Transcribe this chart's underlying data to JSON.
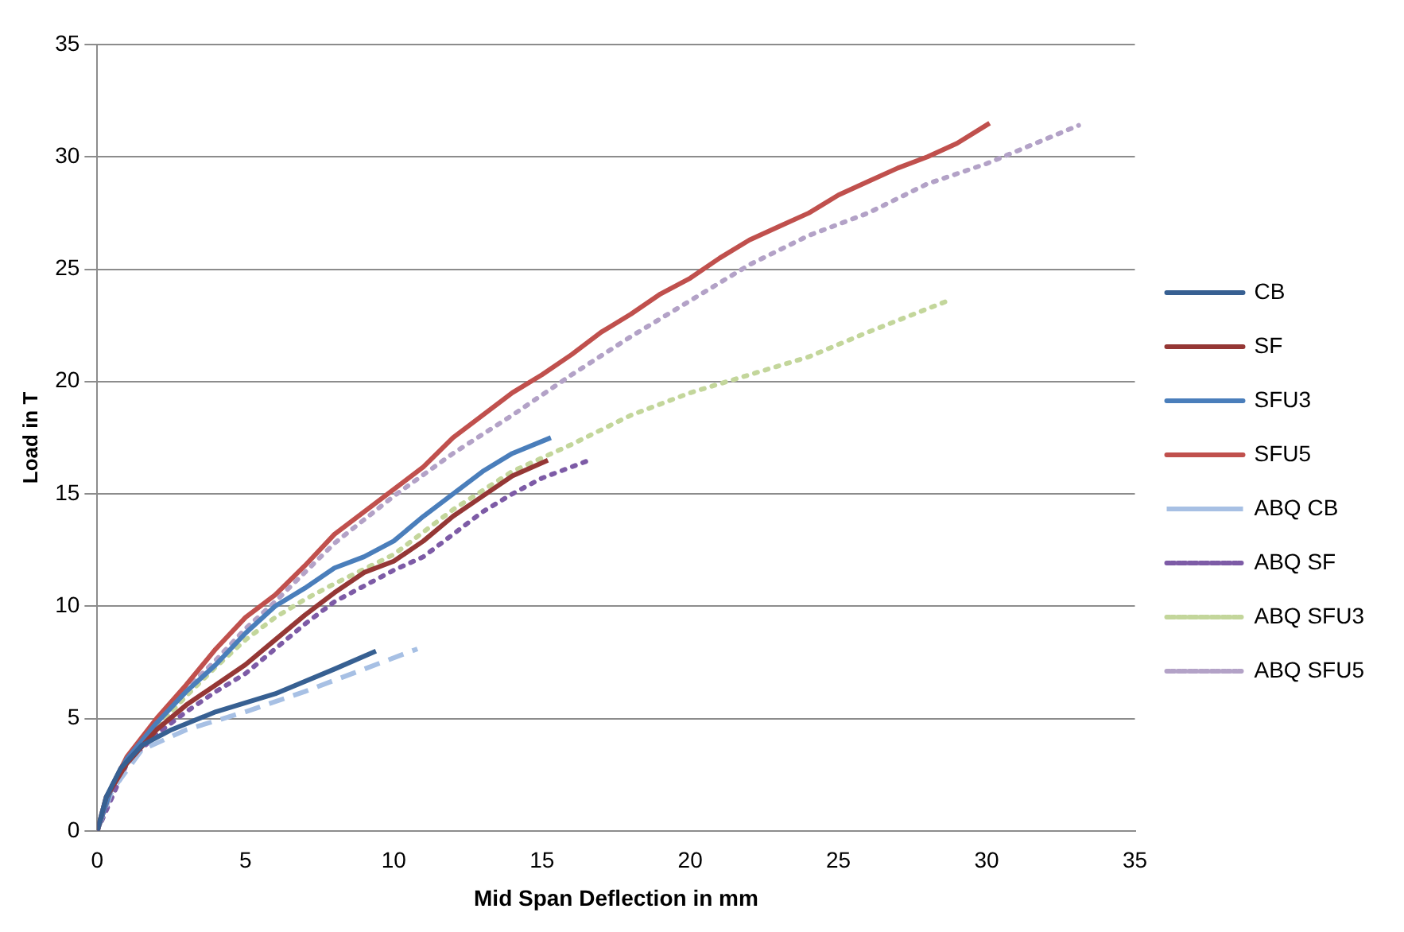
{
  "chart_data": {
    "type": "line",
    "xlabel": "Mid Span Deflection in mm",
    "ylabel": "Load in T",
    "xlim": [
      0,
      35
    ],
    "ylim": [
      0,
      35
    ],
    "xticks": [
      0,
      5,
      10,
      15,
      20,
      25,
      30,
      35
    ],
    "yticks": [
      0,
      5,
      10,
      15,
      20,
      25,
      30,
      35
    ],
    "grid": "y",
    "legend": "right",
    "marker": "none",
    "series": [
      {
        "name": "CB",
        "color": "#376092",
        "line_style": "solid",
        "x": [
          0,
          0.3,
          0.8,
          1.5,
          2.5,
          4,
          6,
          8,
          9.4
        ],
        "values": [
          0,
          1.5,
          2.8,
          3.8,
          4.5,
          5.3,
          6.1,
          7.2,
          8.0
        ]
      },
      {
        "name": "SF",
        "color": "#953735",
        "line_style": "solid",
        "x": [
          0,
          0.3,
          1,
          2,
          3,
          4,
          5,
          6,
          7,
          8,
          9,
          10,
          11,
          12,
          13,
          14,
          15.2
        ],
        "values": [
          0,
          1.5,
          3,
          4.5,
          5.6,
          6.5,
          7.4,
          8.5,
          9.6,
          10.6,
          11.5,
          12,
          12.9,
          14,
          14.9,
          15.8,
          16.5
        ]
      },
      {
        "name": "SFU3",
        "color": "#4a7ebb",
        "line_style": "solid",
        "x": [
          0,
          0.5,
          1,
          2,
          3,
          4,
          5,
          6,
          7,
          8,
          9,
          10,
          11,
          12,
          13,
          14,
          15.3
        ],
        "values": [
          0,
          2,
          3.2,
          4.8,
          6.2,
          7.4,
          8.8,
          10,
          10.8,
          11.7,
          12.2,
          12.9,
          14,
          15,
          16,
          16.8,
          17.5
        ]
      },
      {
        "name": "SFU5",
        "color": "#c0504d",
        "line_style": "solid",
        "x": [
          0,
          0.5,
          1,
          2,
          3,
          4,
          5,
          6,
          7,
          8,
          9,
          10,
          11,
          12,
          13,
          14,
          15,
          16,
          17,
          18,
          19,
          20,
          21,
          22,
          23,
          24,
          25,
          26,
          27,
          28,
          29,
          30.1
        ],
        "values": [
          0,
          2,
          3.3,
          5,
          6.5,
          8.1,
          9.5,
          10.5,
          11.8,
          13.2,
          14.2,
          15.2,
          16.2,
          17.5,
          18.5,
          19.5,
          20.3,
          21.2,
          22.2,
          23,
          23.9,
          24.6,
          25.5,
          26.3,
          26.9,
          27.5,
          28.3,
          28.9,
          29.5,
          30,
          30.6,
          31.5
        ]
      },
      {
        "name": "ABQ CB",
        "color": "#a7c0e4",
        "line_style": "dashed",
        "x": [
          0,
          0.5,
          1.5,
          3,
          5,
          7,
          9,
          10.8
        ],
        "values": [
          0,
          1.8,
          3.6,
          4.5,
          5.3,
          6.2,
          7.2,
          8.1
        ]
      },
      {
        "name": "ABQ SF",
        "color": "#7d5ba6",
        "line_style": "dotted",
        "x": [
          0,
          1,
          2,
          3,
          4,
          5,
          6,
          7,
          8,
          9,
          10,
          11,
          12,
          13,
          14,
          15,
          16.6
        ],
        "values": [
          0,
          3,
          4.3,
          5.3,
          6.2,
          7,
          8.1,
          9.2,
          10.2,
          10.9,
          11.6,
          12.2,
          13.2,
          14.2,
          15,
          15.7,
          16.5
        ]
      },
      {
        "name": "ABQ SFU3",
        "color": "#c3d69b",
        "line_style": "dotted",
        "x": [
          0,
          1,
          2,
          3,
          4,
          5,
          6,
          7,
          8,
          10,
          12,
          14,
          16,
          18,
          20,
          22,
          24,
          26,
          28.7
        ],
        "values": [
          0,
          3.1,
          4.6,
          6,
          7.3,
          8.5,
          9.5,
          10.3,
          11,
          12.3,
          14.3,
          16,
          17.2,
          18.5,
          19.5,
          20.3,
          21.1,
          22.2,
          23.6
        ]
      },
      {
        "name": "ABQ SFU5",
        "color": "#b3a2c7",
        "line_style": "dotted",
        "x": [
          0,
          1,
          2,
          3,
          4,
          5,
          6,
          7,
          8,
          10,
          12,
          14,
          16,
          18,
          20,
          22,
          24,
          26,
          28,
          30,
          33.1
        ],
        "values": [
          0,
          3.2,
          4.9,
          6.3,
          7.6,
          9,
          10.2,
          11.5,
          12.8,
          14.9,
          16.8,
          18.5,
          20.3,
          22,
          23.6,
          25.2,
          26.5,
          27.5,
          28.8,
          29.7,
          31.4
        ]
      }
    ]
  }
}
